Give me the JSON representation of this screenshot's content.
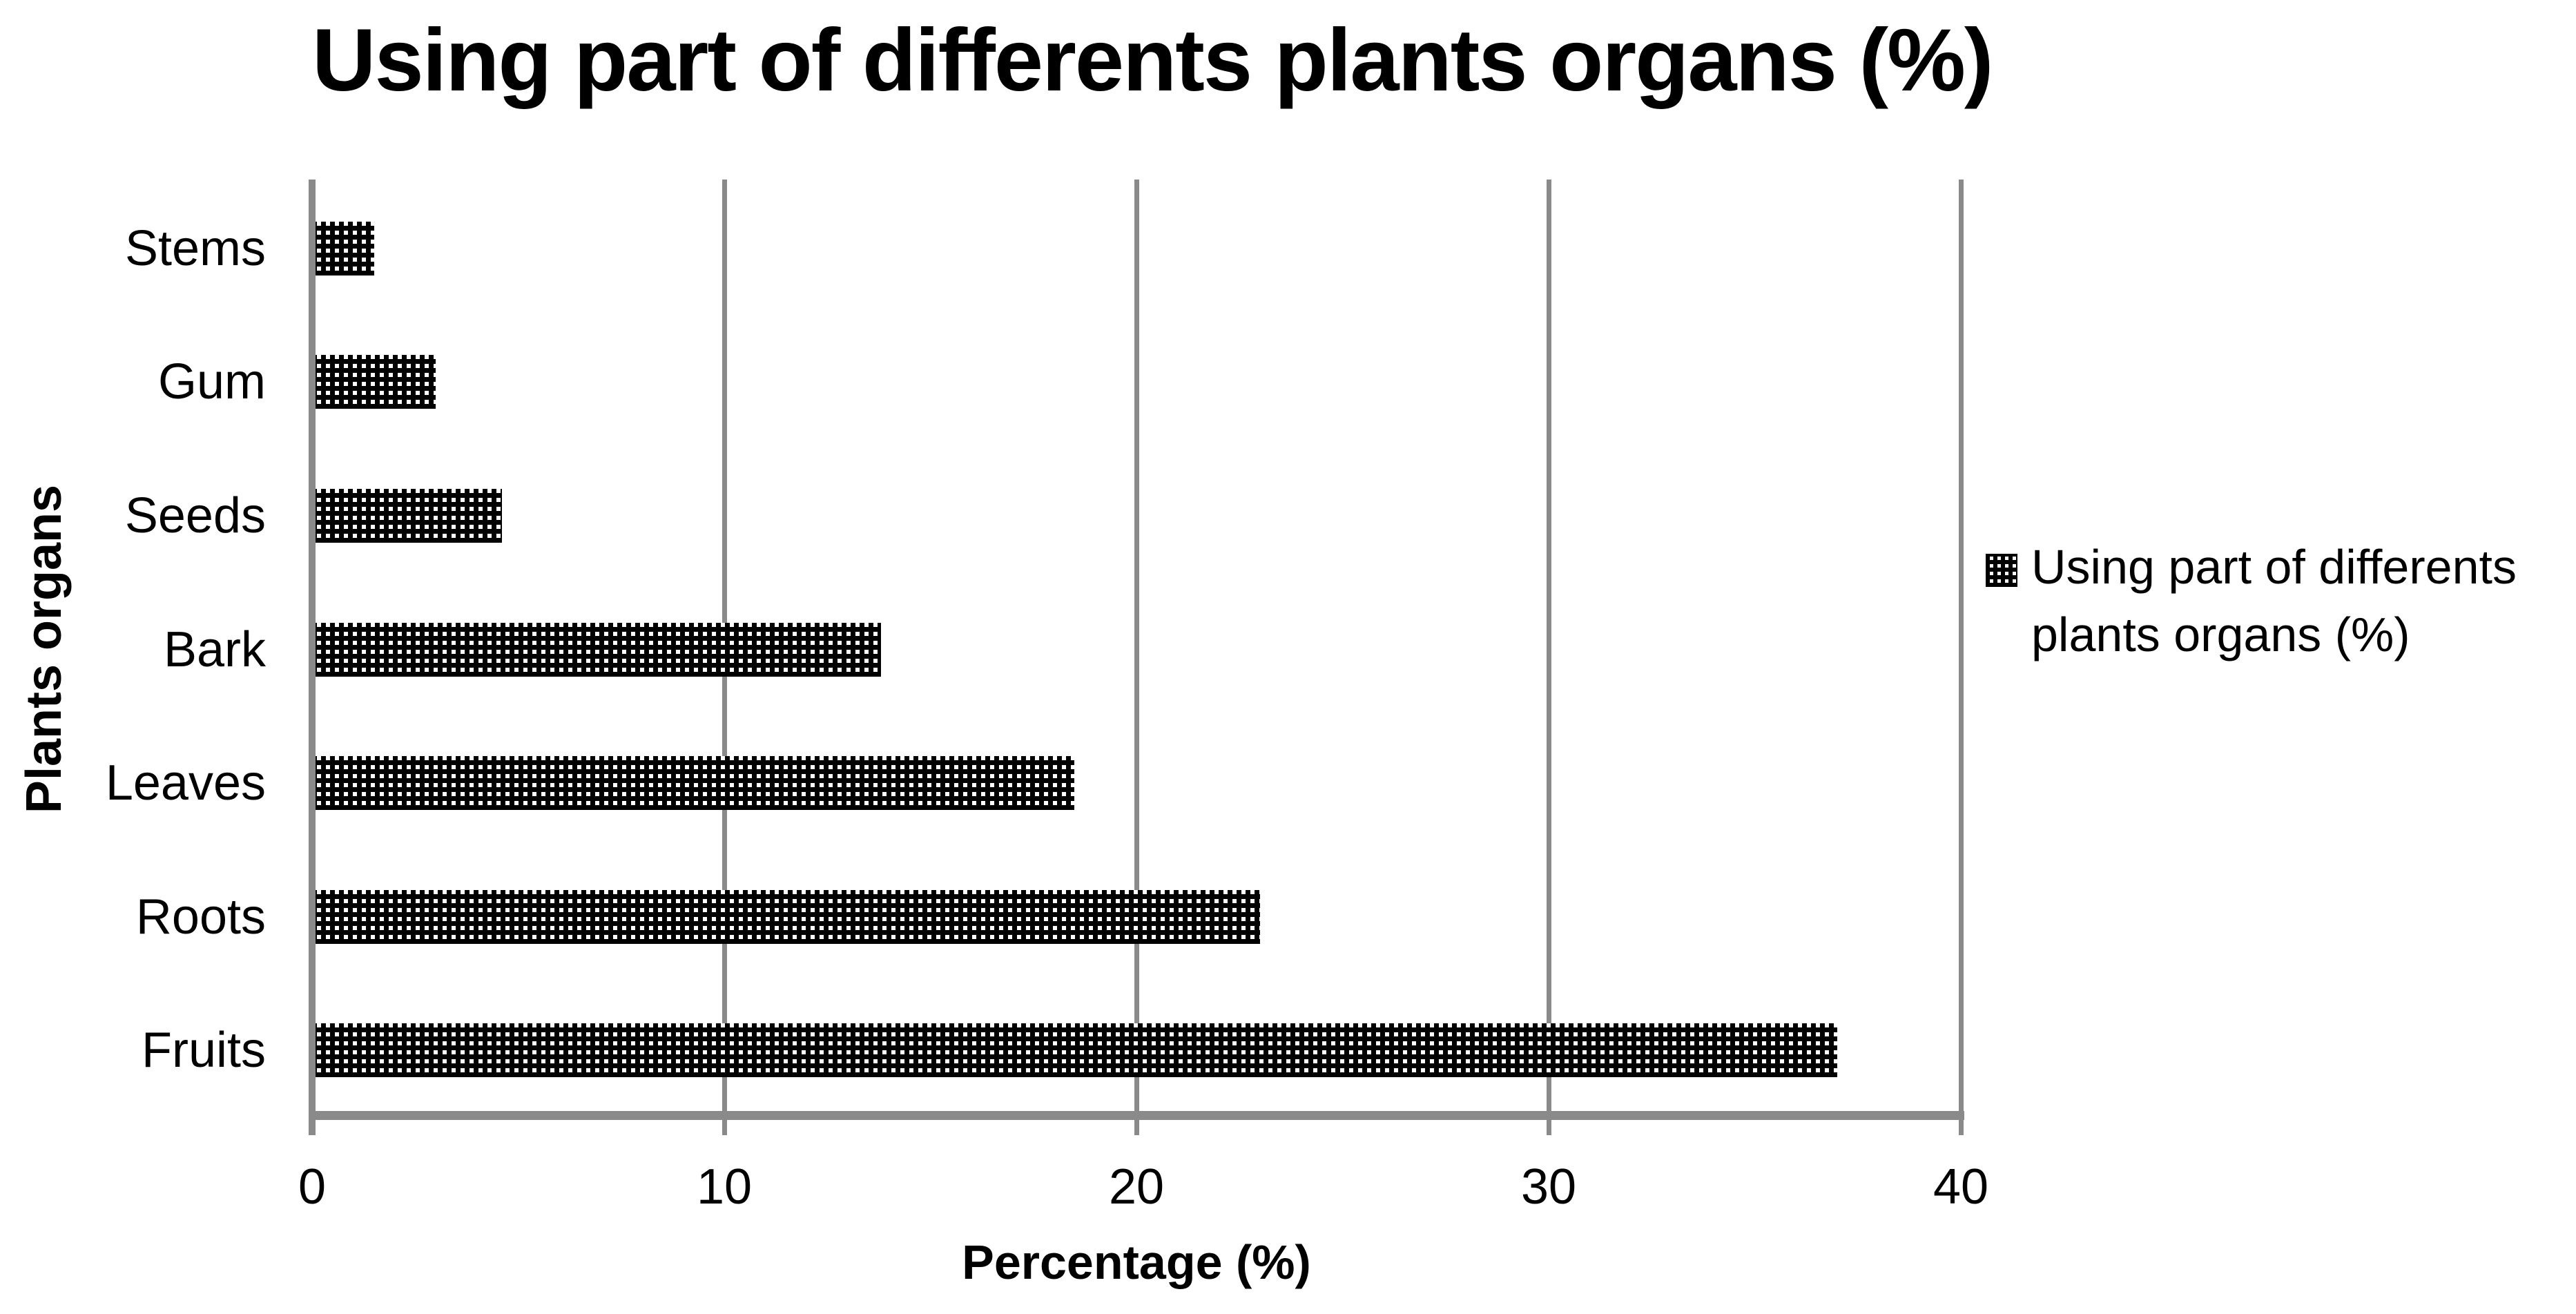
{
  "title": "Using part of differents plants organs (%)",
  "axes": {
    "x_title": "Percentage (%)",
    "y_title": "Plants organs",
    "x_ticks": [
      0,
      10,
      20,
      30,
      40
    ],
    "x_max": 40
  },
  "legend": {
    "lines": [
      "Using part of differents",
      "plants organs (%)"
    ]
  },
  "colors": {
    "bar_pattern_foreground": "#000000",
    "bar_pattern_background": "#ffffff",
    "axis_and_grid": "#8a8a8a",
    "text": "#000000"
  },
  "chart_data": {
    "type": "bar",
    "orientation": "horizontal",
    "title": "Using part of differents plants organs (%)",
    "categories": [
      "Stems",
      "Gum",
      "Seeds",
      "Bark",
      "Leaves",
      "Roots",
      "Fruits"
    ],
    "values": [
      1.5,
      3,
      4.6,
      13.8,
      18.5,
      23,
      37
    ],
    "xlabel": "Percentage (%)",
    "ylabel": "Plants organs",
    "xlim": [
      0,
      40
    ],
    "x_tick_labels": [
      "0",
      "10",
      "20",
      "30",
      "40"
    ],
    "grid": true,
    "gridline_interval": 10,
    "legend_entries": [
      "Using part of differents plants organs (%)"
    ],
    "legend_position": "right",
    "bar_fill": "black-white checkered pattern"
  }
}
